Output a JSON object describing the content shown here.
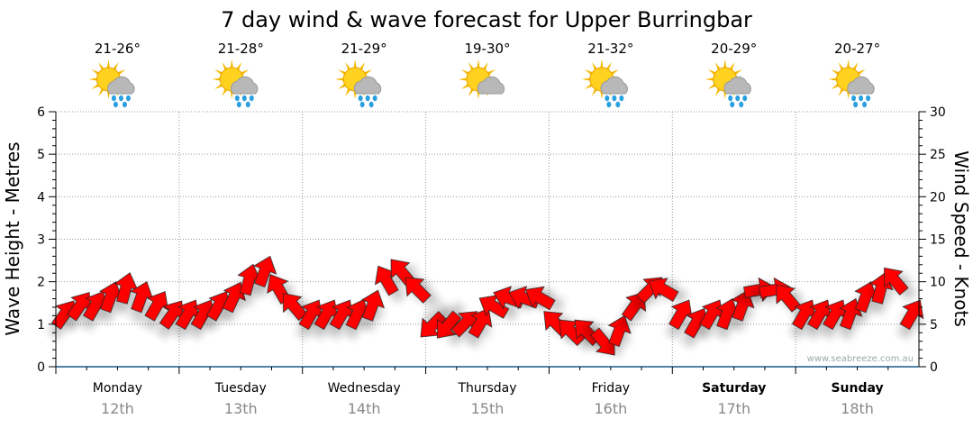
{
  "title": "7 day wind & wave forecast for Upper Burringbar",
  "watermark": "www.seabreeze.com.au",
  "days": [
    {
      "day": "Monday",
      "date": "12th",
      "temp": "21-26°",
      "icon": "sun-cloud-rain-icon",
      "bold": false
    },
    {
      "day": "Tuesday",
      "date": "13th",
      "temp": "21-28°",
      "icon": "sun-cloud-rain-icon",
      "bold": false
    },
    {
      "day": "Wednesday",
      "date": "14th",
      "temp": "21-29°",
      "icon": "sun-cloud-showers-icon",
      "bold": false
    },
    {
      "day": "Thursday",
      "date": "15th",
      "temp": "19-30°",
      "icon": "sun-cloud-icon",
      "bold": false
    },
    {
      "day": "Friday",
      "date": "16th",
      "temp": "21-32°",
      "icon": "sun-cloud-rain-icon",
      "bold": false
    },
    {
      "day": "Saturday",
      "date": "17th",
      "temp": "20-29°",
      "icon": "sun-cloud-rain-icon",
      "bold": true
    },
    {
      "day": "Sunday",
      "date": "18th",
      "temp": "20-27°",
      "icon": "sun-cloud-rain-icon",
      "bold": true
    }
  ],
  "chart_data": {
    "type": "scatter",
    "title": "7 day wind & wave forecast for Upper Burringbar",
    "ylabel": "Wave Height - Metres",
    "y2label": "Wind Speed - Knots",
    "ylim": [
      0,
      6
    ],
    "y2lim": [
      0,
      30
    ],
    "yticks": [
      "0",
      "1",
      "2",
      "3",
      "4",
      "5",
      "6"
    ],
    "y2ticks": [
      "0",
      "5",
      "10",
      "15",
      "20",
      "25",
      "30"
    ],
    "grid": true,
    "arrow_color": "#ff0000",
    "axis_color": "#1a5a8a",
    "series": [
      {
        "name": "Wind (knots, direction deg)",
        "speed": [
          6,
          7,
          7,
          8,
          9,
          8,
          7,
          6,
          6,
          6,
          7,
          8,
          10,
          11,
          9,
          7,
          6,
          6,
          6,
          6,
          7,
          10,
          11,
          9,
          5,
          5,
          5,
          5,
          7,
          8,
          8,
          8,
          5,
          4,
          4,
          3,
          4,
          7,
          9,
          9,
          6,
          5,
          6,
          6,
          7,
          9,
          9,
          8,
          6,
          6,
          6,
          6,
          8,
          9,
          10,
          6
        ],
        "direction": [
          35,
          35,
          30,
          20,
          15,
          20,
          30,
          35,
          30,
          30,
          30,
          25,
          15,
          20,
          330,
          320,
          30,
          30,
          30,
          25,
          20,
          330,
          320,
          315,
          225,
          220,
          45,
          30,
          300,
          290,
          290,
          300,
          315,
          315,
          315,
          140,
          20,
          35,
          45,
          300,
          30,
          30,
          30,
          20,
          20,
          80,
          80,
          320,
          30,
          30,
          30,
          20,
          20,
          15,
          320,
          30
        ]
      }
    ]
  }
}
